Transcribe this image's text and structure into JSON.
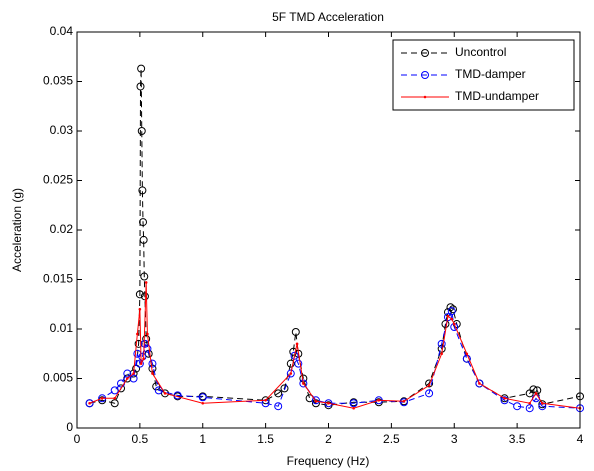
{
  "chart_data": {
    "type": "line",
    "title": "5F TMD Acceleration",
    "x_label": "Frequency (Hz)",
    "y_label": "Acceleration (g)",
    "xlim": [
      0,
      4
    ],
    "ylim": [
      0,
      0.04
    ],
    "xticks": [
      0,
      0.5,
      1,
      1.5,
      2,
      2.5,
      3,
      3.5,
      4
    ],
    "yticks": [
      0,
      0.005,
      0.01,
      0.015,
      0.02,
      0.025,
      0.03,
      0.035,
      0.04
    ],
    "grid": false,
    "legend": "upper-right",
    "series": [
      {
        "name": "Uncontrol",
        "color": "#000000",
        "linestyle": "dashed",
        "marker": "circle",
        "x": [
          0.1,
          0.2,
          0.3,
          0.35,
          0.4,
          0.45,
          0.47,
          0.49,
          0.5,
          0.505,
          0.51,
          0.515,
          0.52,
          0.525,
          0.53,
          0.535,
          0.54,
          0.55,
          0.57,
          0.6,
          0.63,
          0.7,
          0.8,
          1.0,
          1.5,
          1.6,
          1.65,
          1.7,
          1.72,
          1.74,
          1.76,
          1.8,
          1.85,
          1.9,
          2.0,
          2.2,
          2.4,
          2.6,
          2.8,
          2.9,
          2.93,
          2.95,
          2.97,
          2.99,
          3.02,
          3.1,
          3.2,
          3.4,
          3.6,
          3.63,
          3.66,
          3.7,
          4.0
        ],
        "values": [
          0.0025,
          0.0028,
          0.0025,
          0.004,
          0.005,
          0.0055,
          0.006,
          0.0085,
          0.0135,
          0.0345,
          0.0363,
          0.03,
          0.024,
          0.0208,
          0.019,
          0.0153,
          0.0133,
          0.009,
          0.0075,
          0.006,
          0.0042,
          0.0035,
          0.0032,
          0.0032,
          0.0028,
          0.0035,
          0.004,
          0.0065,
          0.0077,
          0.0097,
          0.0075,
          0.005,
          0.003,
          0.0025,
          0.0023,
          0.0026,
          0.0026,
          0.0027,
          0.0045,
          0.008,
          0.0105,
          0.0117,
          0.0122,
          0.012,
          0.0105,
          0.007,
          0.0045,
          0.003,
          0.0035,
          0.0039,
          0.0038,
          0.0024,
          0.0032
        ]
      },
      {
        "name": "TMD-damper",
        "color": "#0000ff",
        "linestyle": "dashed",
        "marker": "circle",
        "x": [
          0.1,
          0.2,
          0.3,
          0.35,
          0.4,
          0.45,
          0.48,
          0.5,
          0.52,
          0.54,
          0.56,
          0.6,
          0.65,
          0.8,
          1.0,
          1.5,
          1.6,
          1.7,
          1.73,
          1.76,
          1.8,
          1.9,
          2.0,
          2.2,
          2.4,
          2.6,
          2.8,
          2.9,
          2.95,
          2.98,
          3.0,
          3.1,
          3.2,
          3.4,
          3.5,
          3.6,
          3.65,
          3.7,
          4.0
        ],
        "values": [
          0.0025,
          0.003,
          0.0038,
          0.0045,
          0.0055,
          0.005,
          0.0075,
          0.0065,
          0.0072,
          0.0085,
          0.008,
          0.0065,
          0.0038,
          0.0033,
          0.0031,
          0.0025,
          0.0022,
          0.0055,
          0.0073,
          0.0065,
          0.0045,
          0.0028,
          0.0025,
          0.0025,
          0.0028,
          0.0026,
          0.0035,
          0.0085,
          0.0112,
          0.0118,
          0.0102,
          0.007,
          0.0045,
          0.0028,
          0.0022,
          0.002,
          0.003,
          0.0022,
          0.002
        ]
      },
      {
        "name": "TMD-undamper",
        "color": "#ff0000",
        "linestyle": "solid",
        "marker": "dot",
        "x": [
          0.1,
          0.2,
          0.3,
          0.4,
          0.45,
          0.48,
          0.5,
          0.51,
          0.53,
          0.55,
          0.56,
          0.6,
          0.7,
          1.0,
          1.5,
          1.7,
          1.75,
          1.8,
          1.9,
          2.0,
          2.2,
          2.4,
          2.6,
          2.8,
          2.9,
          2.95,
          2.98,
          3.0,
          3.1,
          3.2,
          3.4,
          3.6,
          3.65,
          3.7,
          4.0
        ],
        "values": [
          0.0025,
          0.003,
          0.003,
          0.005,
          0.0055,
          0.0095,
          0.012,
          0.0065,
          0.007,
          0.0147,
          0.0095,
          0.0055,
          0.0035,
          0.0025,
          0.0028,
          0.0055,
          0.0085,
          0.0045,
          0.0027,
          0.0025,
          0.002,
          0.0028,
          0.0027,
          0.0043,
          0.0075,
          0.0113,
          0.011,
          0.0105,
          0.0075,
          0.0045,
          0.003,
          0.0025,
          0.0035,
          0.0025,
          0.002
        ]
      }
    ]
  }
}
